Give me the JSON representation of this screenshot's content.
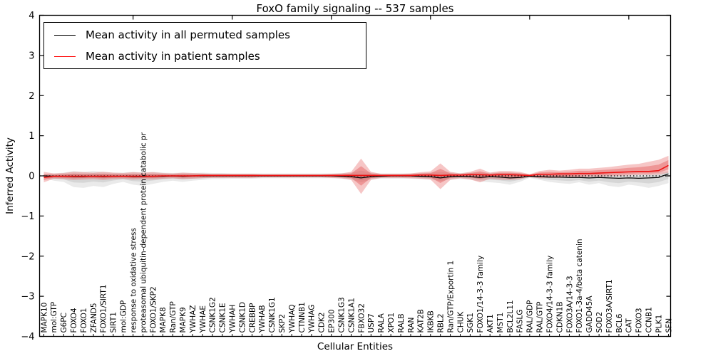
{
  "title": "FoxO family signaling -- 537 samples",
  "xlabel": "Cellular Entities",
  "ylabel": "Inferred Activity",
  "legend": [
    {
      "label": "Mean activity in all permuted samples",
      "color": "#000000"
    },
    {
      "label": "Mean activity in patient samples",
      "color": "#ff0000"
    }
  ],
  "colors": {
    "permuted_line": "#000000",
    "patient_line": "#ee1111",
    "permuted_band": "#aaaaaa",
    "patient_band": "#dd3333",
    "axis": "#000000"
  },
  "chart_data": {
    "type": "line",
    "title": "FoxO family signaling -- 537 samples",
    "xlabel": "Cellular Entities",
    "ylabel": "Inferred Activity",
    "ylim": [
      -4,
      4
    ],
    "yticks": [
      4,
      3,
      2,
      1,
      0,
      -1,
      -2,
      -3,
      -4
    ],
    "grid": false,
    "zero_line": "dotted",
    "legend_position": "upper left",
    "categories": [
      "MAPK10",
      "mol:GTP",
      "G6PC",
      "FOXO4",
      "FOXO1",
      "ZFAND5",
      "FOXO1/SIRT1",
      "SIRT1",
      "mol:GDP",
      "response to oxidative stress",
      "proteasomal ubiquitin-dependent protein catabolic pr",
      "FOXO1/SKP2",
      "MAPK8",
      "Ran/GTP",
      "MAPK9",
      "YWHAZ",
      "YWHAE",
      "CSNK1G2",
      "CSNK1E",
      "YWHAH",
      "CSNK1D",
      "CREBBP",
      "YWHAB",
      "CSNK1G1",
      "SKP2",
      "YWHAQ",
      "CTNNB1",
      "YWHAG",
      "CDK2",
      "EP300",
      "CSNK1G3",
      "CSNK1A1",
      "FBXO32",
      "USP7",
      "RALA",
      "XPO1",
      "RALB",
      "RAN",
      "KAT2B",
      "IKBKB",
      "RBL2",
      "Ran/GTP/Exportin 1",
      "CHUK",
      "SGK1",
      "FOXO1/14-3-3 family",
      "AKT1",
      "MST1",
      "BCL2L11",
      "FASLG",
      "RAL/GDP",
      "RAL/GTP",
      "FOXO4/14-3-3 family",
      "CDKN1B",
      "FOXO3A/14-3-3",
      "FOXO1-3a-4/beta catenin",
      "GADD45A",
      "SOD2",
      "FOXO3A/SIRT1",
      "BCL6",
      "CAT",
      "FOXO3",
      "CCNB1",
      "PLK1",
      "SFN"
    ],
    "series": [
      {
        "name": "Mean activity in all permuted samples",
        "color": "#000000",
        "values": [
          0,
          -0.01,
          -0.01,
          -0.02,
          -0.02,
          -0.01,
          -0.02,
          -0.01,
          -0.01,
          -0.02,
          -0.02,
          -0.01,
          -0.01,
          0,
          -0.01,
          0,
          0,
          0,
          0,
          0,
          0,
          0,
          0,
          0,
          0,
          0,
          0,
          0,
          0,
          0,
          -0.01,
          -0.02,
          -0.05,
          -0.02,
          -0.01,
          0,
          0,
          0,
          -0.01,
          -0.02,
          -0.05,
          -0.02,
          -0.01,
          -0.02,
          -0.04,
          -0.02,
          -0.03,
          -0.05,
          -0.04,
          -0.01,
          -0.02,
          -0.03,
          -0.03,
          -0.04,
          -0.04,
          -0.05,
          -0.04,
          -0.05,
          -0.06,
          -0.05,
          -0.06,
          -0.05,
          -0.04,
          0.05
        ]
      },
      {
        "name": "Mean activity in patient samples",
        "color": "#ff0000",
        "values": [
          -0.04,
          -0.01,
          -0.01,
          -0.01,
          -0.01,
          -0.01,
          -0.01,
          -0.01,
          -0.01,
          -0.01,
          -0.01,
          -0.01,
          0,
          0,
          0,
          0,
          0.01,
          0.01,
          0.01,
          0.01,
          0.01,
          0.01,
          0.01,
          0.01,
          0.01,
          0.01,
          0.01,
          0.01,
          0.01,
          0.01,
          0.01,
          0.01,
          0.01,
          0.01,
          0.01,
          0.01,
          0.01,
          0.01,
          0.02,
          0.02,
          0.01,
          0.02,
          0.02,
          0.03,
          0.03,
          0.02,
          0.03,
          0.03,
          0.02,
          0.01,
          0.04,
          0.04,
          0.05,
          0.05,
          0.06,
          0.06,
          0.07,
          0.08,
          0.09,
          0.1,
          0.11,
          0.11,
          0.13,
          0.26
        ]
      }
    ],
    "bands": [
      {
        "name": "permuted range",
        "color": "#aaaaaa",
        "upper": [
          0.05,
          0.06,
          0.08,
          0.12,
          0.1,
          0.12,
          0.1,
          0.08,
          0.08,
          0.1,
          0.08,
          0.1,
          0.08,
          0.07,
          0.08,
          0.07,
          0.08,
          0.07,
          0.07,
          0.06,
          0.06,
          0.06,
          0.06,
          0.06,
          0.06,
          0.06,
          0.06,
          0.06,
          0.06,
          0.06,
          0.07,
          0.08,
          0.13,
          0.08,
          0.06,
          0.06,
          0.06,
          0.06,
          0.07,
          0.08,
          0.1,
          0.08,
          0.07,
          0.08,
          0.08,
          0.08,
          0.08,
          0.08,
          0.07,
          0.04,
          0.05,
          0.05,
          0.05,
          0.05,
          0.05,
          0.05,
          0.05,
          0.05,
          0.05,
          0.05,
          0.05,
          0.06,
          0.08,
          0.12
        ],
        "lower": [
          -0.05,
          -0.12,
          -0.15,
          -0.28,
          -0.3,
          -0.25,
          -0.28,
          -0.2,
          -0.15,
          -0.22,
          -0.25,
          -0.2,
          -0.15,
          -0.12,
          -0.15,
          -0.12,
          -0.1,
          -0.08,
          -0.08,
          -0.07,
          -0.07,
          -0.07,
          -0.06,
          -0.06,
          -0.06,
          -0.06,
          -0.06,
          -0.06,
          -0.06,
          -0.06,
          -0.07,
          -0.09,
          -0.16,
          -0.09,
          -0.07,
          -0.07,
          -0.07,
          -0.07,
          -0.08,
          -0.09,
          -0.13,
          -0.09,
          -0.08,
          -0.09,
          -0.14,
          -0.16,
          -0.18,
          -0.22,
          -0.15,
          -0.05,
          -0.1,
          -0.15,
          -0.18,
          -0.2,
          -0.16,
          -0.22,
          -0.18,
          -0.25,
          -0.28,
          -0.22,
          -0.25,
          -0.3,
          -0.25,
          -0.18
        ]
      },
      {
        "name": "patient range",
        "color": "#dd3333",
        "upper": [
          0.1,
          0.06,
          0.07,
          0.1,
          0.09,
          0.08,
          0.1,
          0.08,
          0.07,
          0.09,
          0.08,
          0.09,
          0.07,
          0.06,
          0.08,
          0.07,
          0.06,
          0.05,
          0.05,
          0.05,
          0.05,
          0.05,
          0.04,
          0.04,
          0.04,
          0.04,
          0.04,
          0.04,
          0.04,
          0.05,
          0.06,
          0.1,
          0.43,
          0.1,
          0.05,
          0.05,
          0.05,
          0.06,
          0.09,
          0.11,
          0.31,
          0.1,
          0.06,
          0.1,
          0.18,
          0.08,
          0.12,
          0.12,
          0.1,
          0.04,
          0.12,
          0.15,
          0.13,
          0.15,
          0.18,
          0.18,
          0.2,
          0.22,
          0.25,
          0.28,
          0.3,
          0.35,
          0.4,
          0.5
        ],
        "lower": [
          -0.16,
          -0.07,
          -0.08,
          -0.1,
          -0.09,
          -0.08,
          -0.1,
          -0.08,
          -0.07,
          -0.09,
          -0.08,
          -0.09,
          -0.07,
          -0.06,
          -0.08,
          -0.07,
          -0.06,
          -0.05,
          -0.05,
          -0.05,
          -0.05,
          -0.05,
          -0.04,
          -0.04,
          -0.04,
          -0.04,
          -0.04,
          -0.04,
          -0.04,
          -0.05,
          -0.06,
          -0.1,
          -0.45,
          -0.1,
          -0.05,
          -0.05,
          -0.05,
          -0.06,
          -0.07,
          -0.09,
          -0.33,
          -0.1,
          -0.06,
          -0.09,
          -0.16,
          -0.07,
          -0.09,
          -0.1,
          -0.08,
          -0.03,
          -0.06,
          -0.05,
          -0.05,
          -0.04,
          -0.03,
          -0.02,
          -0.02,
          -0.01,
          0.0,
          0.01,
          0.02,
          0.02,
          0.03,
          0.08
        ]
      }
    ],
    "x_major_tick_every": 10
  }
}
